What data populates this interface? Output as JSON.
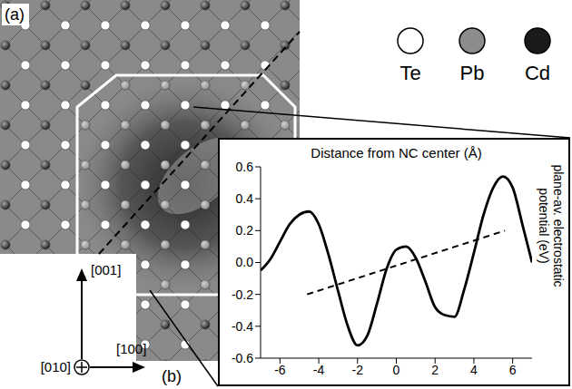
{
  "chart_data": {
    "type": "line",
    "panel_label": "(b)",
    "title": "Distance from NC center (Å)",
    "y_label": "plane-av. electrostatic potential (eV)",
    "xlim": [
      -7,
      7
    ],
    "xticks": [
      -6,
      -4,
      -2,
      0,
      2,
      4,
      6
    ],
    "ylim": [
      -0.6,
      0.6
    ],
    "yticks": [
      -0.6,
      -0.4,
      -0.2,
      {
        "value": 0,
        "label": "0.0"
      },
      0.2,
      0.4,
      0.6
    ],
    "grid": false,
    "series": [
      {
        "x": [
          -7,
          -6.5,
          -6,
          -5.5,
          -5,
          -4.5,
          -4,
          -3.5,
          -3,
          -2.5,
          -2,
          -1.5,
          -1,
          -0.5,
          0,
          0.5,
          1,
          1.5,
          2,
          2.5,
          3,
          3.5,
          4,
          4.5,
          5,
          5.5,
          6,
          6.5,
          7
        ],
        "values": [
          -0.05,
          0.02,
          0.13,
          0.24,
          0.3,
          0.32,
          0.24,
          0.05,
          -0.18,
          -0.4,
          -0.52,
          -0.46,
          -0.26,
          -0.04,
          0.08,
          0.1,
          0.03,
          -0.12,
          -0.28,
          -0.33,
          -0.34,
          -0.17,
          0.06,
          0.3,
          0.47,
          0.54,
          0.47,
          0.24,
          0.0
        ],
        "color": "#000000",
        "line_style": "solid"
      },
      {
        "x": [
          -4.6,
          5.6
        ],
        "values": [
          -0.2,
          0.2
        ],
        "color": "#000000",
        "line_style": "dashed"
      }
    ]
  },
  "diagram": {
    "panel_label": "(a)",
    "atoms": [
      {
        "label": "Te",
        "color": "#ffffff"
      },
      {
        "label": "Pb",
        "color": "#8c8c8c"
      },
      {
        "label": "Cd",
        "color": "#1a1a1a"
      }
    ],
    "directions": {
      "up": "[001]",
      "out": "[010]",
      "right": "[100]"
    }
  }
}
